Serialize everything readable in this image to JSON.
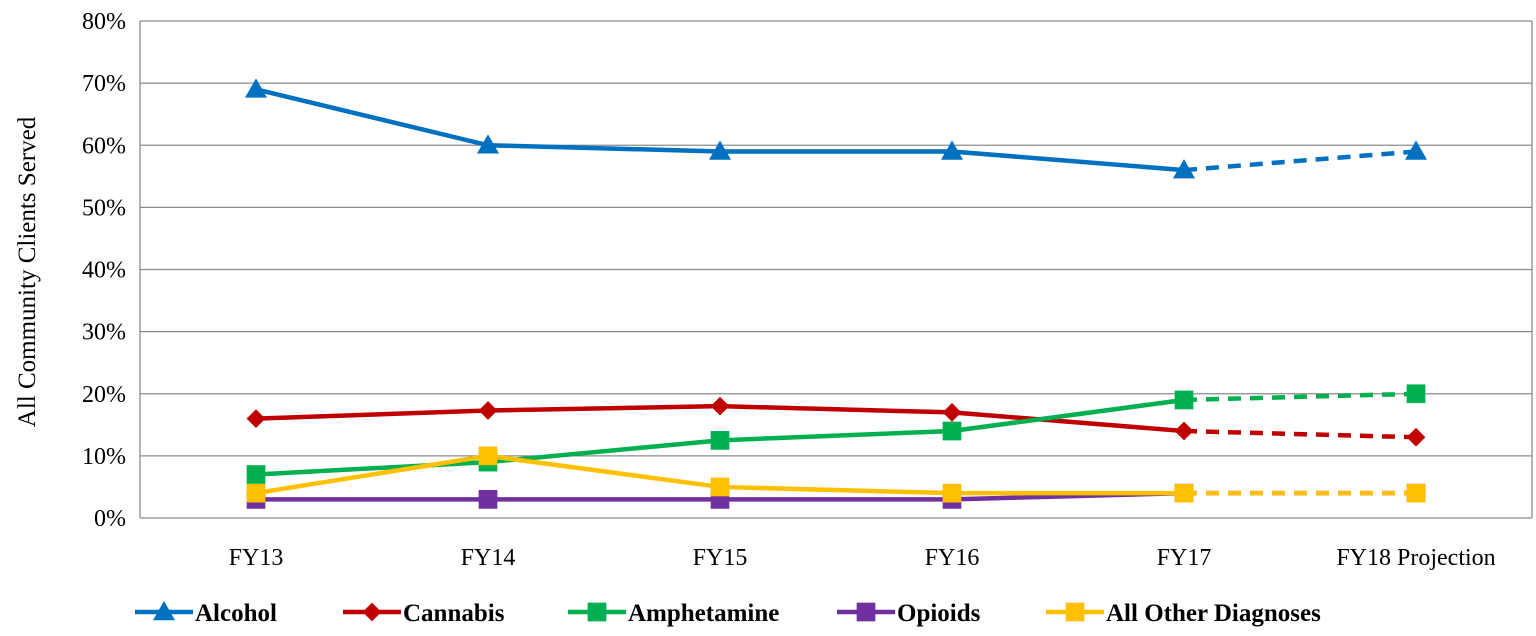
{
  "chart_data": {
    "type": "line",
    "categories": [
      "FY13",
      "FY14",
      "FY15",
      "FY16",
      "FY17",
      "FY18 Projection"
    ],
    "ylabel": "All Community Clients  Served",
    "ylim": [
      0,
      80
    ],
    "yticks": [
      "0%",
      "10%",
      "20%",
      "30%",
      "40%",
      "50%",
      "60%",
      "70%",
      "80%"
    ],
    "grid": true,
    "legend_position": "bottom",
    "projection_from_index": 4,
    "series": [
      {
        "name": "Alcohol",
        "values": [
          69,
          60,
          59,
          59,
          56,
          59
        ],
        "color": "#0070C0",
        "marker": "triangle"
      },
      {
        "name": "Cannabis",
        "values": [
          16,
          17.3,
          18,
          17,
          14,
          13
        ],
        "color": "#C00000",
        "marker": "diamond"
      },
      {
        "name": "Amphetamine",
        "values": [
          7,
          9,
          12.5,
          14,
          19,
          20
        ],
        "color": "#00B050",
        "marker": "square"
      },
      {
        "name": "Opioids",
        "values": [
          3,
          3,
          3,
          3,
          4,
          4
        ],
        "color": "#7030A0",
        "marker": "square"
      },
      {
        "name": "All Other Diagnoses",
        "values": [
          4,
          10,
          5,
          4,
          4,
          4
        ],
        "color": "#FFC000",
        "marker": "square"
      }
    ]
  }
}
